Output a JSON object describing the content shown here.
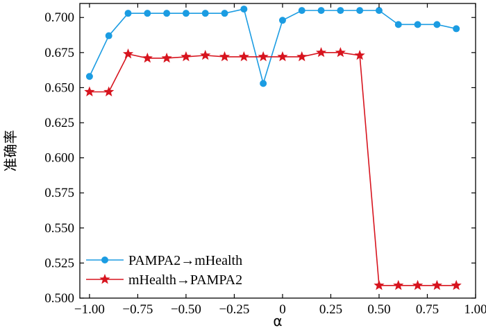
{
  "chart_data": {
    "type": "line",
    "title": "",
    "xlabel": "α",
    "ylabel": "准确率",
    "xlim": [
      -1.05,
      1.0
    ],
    "ylim": [
      0.5,
      0.71
    ],
    "x_ticks": [
      -1.0,
      -0.75,
      -0.5,
      -0.25,
      0,
      0.25,
      0.5,
      0.75,
      1.0
    ],
    "x_tick_labels": [
      "−1.00",
      "−0.75",
      "−0.50",
      "−0.25",
      "0",
      "0.25",
      "0.50",
      "0.75",
      "1.00"
    ],
    "y_ticks": [
      0.5,
      0.525,
      0.55,
      0.575,
      0.6,
      0.625,
      0.65,
      0.675,
      0.7
    ],
    "y_tick_labels": [
      "0.500",
      "0.525",
      "0.550",
      "0.575",
      "0.600",
      "0.625",
      "0.650",
      "0.675",
      "0.700"
    ],
    "grid": false,
    "legend_position": "bottom-left",
    "x": [
      -1.0,
      -0.9,
      -0.8,
      -0.7,
      -0.6,
      -0.5,
      -0.4,
      -0.3,
      -0.2,
      -0.1,
      0.0,
      0.1,
      0.2,
      0.3,
      0.4,
      0.5,
      0.6,
      0.7,
      0.8,
      0.9
    ],
    "series": [
      {
        "name": "PAMPA2→mHealth",
        "color": "#1b9ce2",
        "marker": "circle",
        "values": [
          0.658,
          0.687,
          0.703,
          0.703,
          0.703,
          0.703,
          0.703,
          0.703,
          0.706,
          0.653,
          0.698,
          0.705,
          0.705,
          0.705,
          0.705,
          0.705,
          0.695,
          0.695,
          0.695,
          0.692
        ]
      },
      {
        "name": "mHealth→PAMPA2",
        "color": "#d7141e",
        "marker": "star",
        "values": [
          0.647,
          0.647,
          0.674,
          0.671,
          0.671,
          0.672,
          0.673,
          0.672,
          0.672,
          0.672,
          0.672,
          0.672,
          0.675,
          0.675,
          0.673,
          0.509,
          0.509,
          0.509,
          0.509,
          0.509
        ]
      }
    ]
  }
}
